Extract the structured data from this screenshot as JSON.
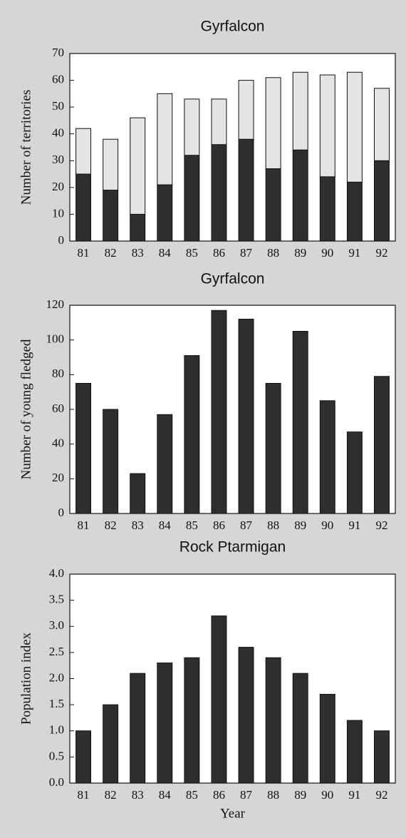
{
  "chart_data": [
    {
      "type": "stacked_bar",
      "title": "Gyrfalcon",
      "ylabel": "Number of territories",
      "categories": [
        "81",
        "82",
        "83",
        "84",
        "85",
        "86",
        "87",
        "88",
        "89",
        "90",
        "91",
        "92"
      ],
      "series": [
        {
          "color": "#2e2e2e",
          "values": [
            25,
            19,
            10,
            21,
            32,
            36,
            38,
            27,
            34,
            24,
            22,
            30
          ]
        },
        {
          "color": "#e4e4e4",
          "values": [
            17,
            19,
            36,
            34,
            21,
            17,
            22,
            34,
            29,
            38,
            41,
            27
          ]
        }
      ],
      "ylim": [
        0,
        70
      ],
      "yticks": [
        0,
        10,
        20,
        30,
        40,
        50,
        60,
        70
      ]
    },
    {
      "type": "bar",
      "title": "Gyrfalcon",
      "ylabel": "Number of young fledged",
      "categories": [
        "81",
        "82",
        "83",
        "84",
        "85",
        "86",
        "87",
        "88",
        "89",
        "90",
        "91",
        "92"
      ],
      "values": [
        75,
        60,
        23,
        57,
        91,
        117,
        112,
        75,
        105,
        65,
        47,
        79
      ],
      "color": "#2e2e2e",
      "ylim": [
        0,
        120
      ],
      "yticks": [
        0,
        20,
        40,
        60,
        80,
        100,
        120
      ]
    },
    {
      "type": "bar",
      "title": "Rock Ptarmigan",
      "ylabel": "Population index",
      "xlabel": "Year",
      "categories": [
        "81",
        "82",
        "83",
        "84",
        "85",
        "86",
        "87",
        "88",
        "89",
        "90",
        "91",
        "92"
      ],
      "values": [
        1.0,
        1.5,
        2.1,
        2.3,
        2.4,
        3.2,
        2.6,
        2.4,
        2.1,
        1.7,
        1.2,
        1.0
      ],
      "color": "#2e2e2e",
      "ylim": [
        0,
        4
      ],
      "yticks": [
        {
          "value": 0,
          "label": "0.0"
        },
        {
          "value": 0.5,
          "label": "0.5"
        },
        {
          "value": 1,
          "label": "1.0"
        },
        {
          "value": 1.5,
          "label": "1.5"
        },
        {
          "value": 2,
          "label": "2.0"
        },
        {
          "value": 2.5,
          "label": "2.5"
        },
        {
          "value": 3,
          "label": "3.0"
        },
        {
          "value": 3.5,
          "label": "3.5"
        },
        {
          "value": 4,
          "label": "4.0"
        }
      ]
    }
  ]
}
